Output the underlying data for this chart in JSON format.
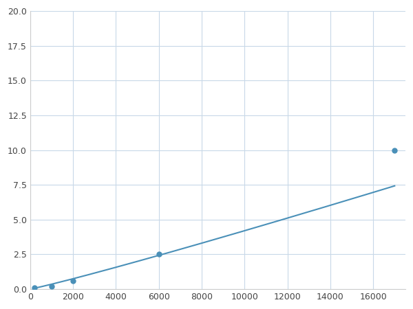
{
  "x_points": [
    200,
    1000,
    2000,
    6000,
    17000
  ],
  "y_points": [
    0.1,
    0.2,
    0.6,
    2.5,
    10.0
  ],
  "line_color": "#4a90b8",
  "marker_color": "#4a90b8",
  "marker_size": 5,
  "xlim": [
    0,
    17500
  ],
  "ylim": [
    0,
    20.0
  ],
  "xticks": [
    0,
    2000,
    4000,
    6000,
    8000,
    10000,
    12000,
    14000,
    16000
  ],
  "yticks": [
    0.0,
    2.5,
    5.0,
    7.5,
    10.0,
    12.5,
    15.0,
    17.5,
    20.0
  ],
  "grid_color": "#c8d8e8",
  "bg_color": "#ffffff",
  "figsize": [
    6.0,
    4.5
  ],
  "dpi": 100
}
